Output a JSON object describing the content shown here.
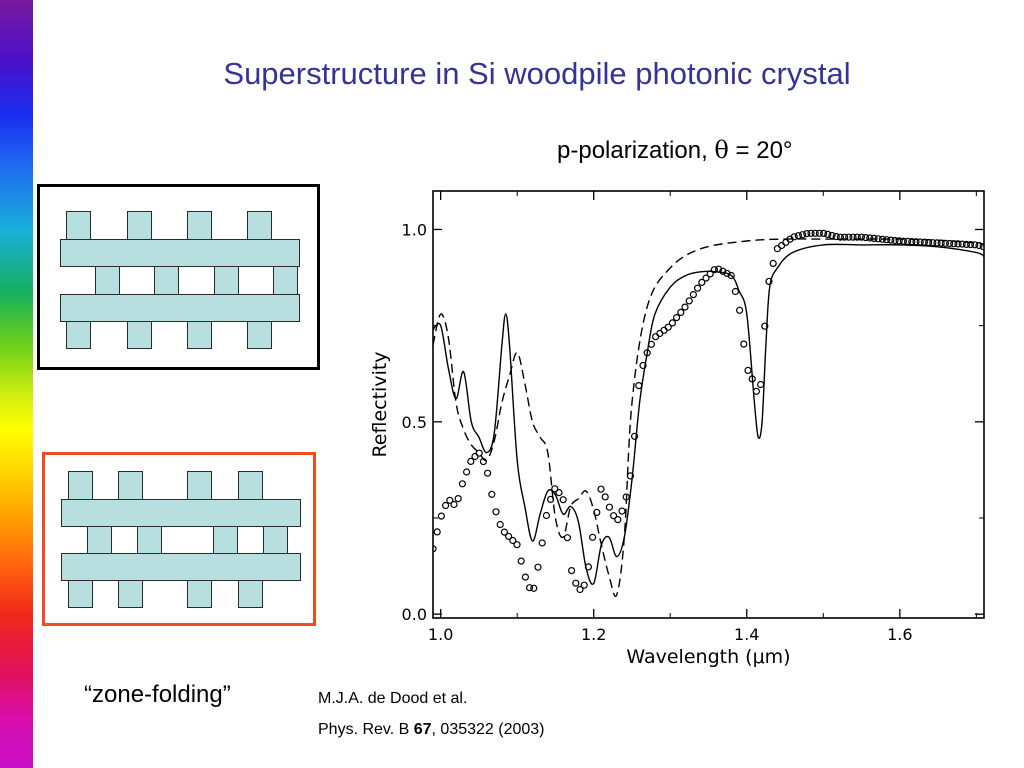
{
  "slide": {
    "title": "Superstructure in Si woodpile photonic crystal",
    "subtitle_prefix": "p-polarization, ",
    "subtitle_symbol": "θ",
    "subtitle_suffix": " = 20°",
    "zone_folding_label": "“zone-folding”",
    "reference_authors": "M.J.A. de Dood et al.",
    "reference_journal": "Phys. Rev. B ",
    "reference_volume": "67",
    "reference_rest": ", 035322 (2003)"
  },
  "colors": {
    "title": "#333399",
    "rod_fill": "#b7dfe0",
    "superstructure_frame": "#ee4e1e",
    "regular_frame": "#000000"
  },
  "chart_data": {
    "type": "line",
    "xlabel": "Wavelength  (μm)",
    "ylabel": "Reflectivity",
    "xlim": [
      0.99,
      1.71
    ],
    "ylim": [
      -0.01,
      1.1
    ],
    "x_ticks": [
      1.0,
      1.2,
      1.4,
      1.6
    ],
    "x_tick_labels": [
      "1.0",
      "1.2",
      "1.4",
      "1.6"
    ],
    "y_ticks": [
      0.0,
      0.5,
      1.0
    ],
    "y_tick_labels": [
      "0.0",
      "0.5",
      "1.0"
    ],
    "grid": false,
    "series": [
      {
        "style": "solid",
        "x": [
          0.99,
          1.0,
          1.01,
          1.02,
          1.03,
          1.04,
          1.05,
          1.06,
          1.07,
          1.08,
          1.085,
          1.09,
          1.1,
          1.11,
          1.12,
          1.13,
          1.14,
          1.15,
          1.16,
          1.17,
          1.18,
          1.19,
          1.2,
          1.21,
          1.22,
          1.23,
          1.24,
          1.25,
          1.26,
          1.27,
          1.28,
          1.3,
          1.32,
          1.34,
          1.36,
          1.38,
          1.39,
          1.4,
          1.41,
          1.415,
          1.42,
          1.425,
          1.43,
          1.44,
          1.46,
          1.5,
          1.55,
          1.6,
          1.65,
          1.7,
          1.71
        ],
        "y": [
          0.74,
          0.75,
          0.64,
          0.56,
          0.63,
          0.5,
          0.46,
          0.42,
          0.47,
          0.7,
          0.78,
          0.7,
          0.4,
          0.28,
          0.19,
          0.26,
          0.32,
          0.31,
          0.26,
          0.28,
          0.24,
          0.12,
          0.08,
          0.18,
          0.2,
          0.15,
          0.2,
          0.35,
          0.55,
          0.68,
          0.78,
          0.85,
          0.88,
          0.89,
          0.89,
          0.88,
          0.84,
          0.78,
          0.55,
          0.46,
          0.5,
          0.7,
          0.85,
          0.9,
          0.94,
          0.96,
          0.96,
          0.96,
          0.955,
          0.94,
          0.93
        ]
      },
      {
        "style": "dashed",
        "x": [
          0.99,
          1.0,
          1.01,
          1.02,
          1.03,
          1.04,
          1.05,
          1.06,
          1.07,
          1.08,
          1.09,
          1.1,
          1.11,
          1.12,
          1.13,
          1.14,
          1.15,
          1.16,
          1.17,
          1.18,
          1.19,
          1.2,
          1.21,
          1.22,
          1.23,
          1.24,
          1.25,
          1.27,
          1.3,
          1.34,
          1.4,
          1.45,
          1.5,
          1.55,
          1.6,
          1.65,
          1.7,
          1.71
        ],
        "y": [
          0.7,
          0.78,
          0.72,
          0.55,
          0.48,
          0.44,
          0.42,
          0.4,
          0.45,
          0.55,
          0.62,
          0.68,
          0.6,
          0.5,
          0.46,
          0.42,
          0.25,
          0.2,
          0.28,
          0.3,
          0.32,
          0.27,
          0.18,
          0.1,
          0.05,
          0.2,
          0.55,
          0.8,
          0.9,
          0.95,
          0.97,
          0.975,
          0.975,
          0.975,
          0.975,
          0.972,
          0.965,
          0.96
        ]
      },
      {
        "style": "circles",
        "x": [
          0.99,
          1.0,
          1.01,
          1.02,
          1.03,
          1.04,
          1.05,
          1.06,
          1.07,
          1.08,
          1.09,
          1.1,
          1.11,
          1.12,
          1.13,
          1.14,
          1.15,
          1.16,
          1.17,
          1.18,
          1.19,
          1.2,
          1.21,
          1.22,
          1.23,
          1.24,
          1.25,
          1.26,
          1.27,
          1.28,
          1.3,
          1.32,
          1.34,
          1.36,
          1.38,
          1.39,
          1.4,
          1.41,
          1.415,
          1.42,
          1.425,
          1.43,
          1.44,
          1.46,
          1.48,
          1.5,
          1.52,
          1.55,
          1.6,
          1.65,
          1.7,
          1.71
        ],
        "y": [
          0.17,
          0.25,
          0.3,
          0.28,
          0.35,
          0.4,
          0.42,
          0.38,
          0.28,
          0.22,
          0.2,
          0.18,
          0.1,
          0.05,
          0.15,
          0.28,
          0.33,
          0.3,
          0.12,
          0.06,
          0.08,
          0.22,
          0.33,
          0.28,
          0.24,
          0.28,
          0.38,
          0.62,
          0.68,
          0.72,
          0.75,
          0.8,
          0.86,
          0.9,
          0.88,
          0.8,
          0.64,
          0.6,
          0.56,
          0.62,
          0.8,
          0.88,
          0.95,
          0.98,
          0.99,
          0.99,
          0.98,
          0.98,
          0.97,
          0.965,
          0.96,
          0.955
        ]
      }
    ]
  }
}
